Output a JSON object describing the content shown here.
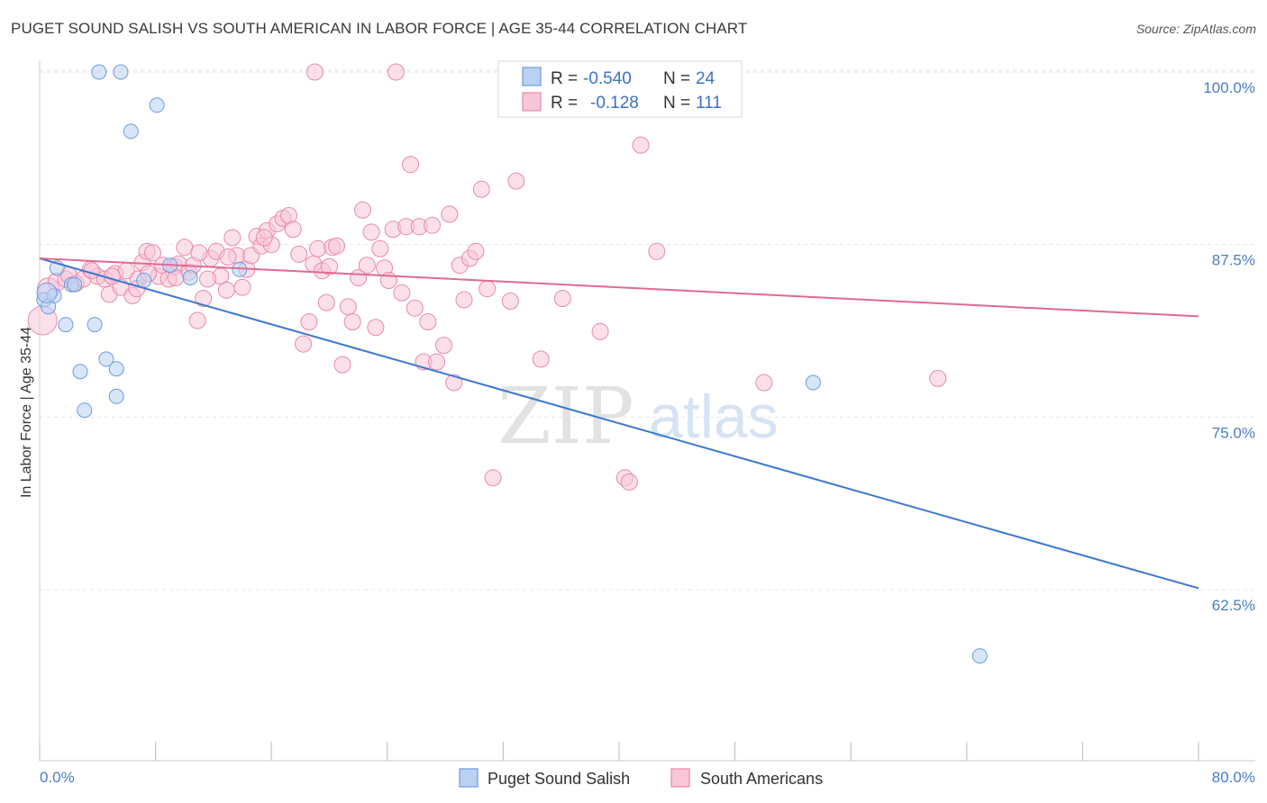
{
  "header": {
    "title": "PUGET SOUND SALISH VS SOUTH AMERICAN IN LABOR FORCE | AGE 35-44 CORRELATION CHART",
    "source": "Source: ZipAtlas.com"
  },
  "watermark": {
    "zip": "ZIP",
    "atlas": "atlas"
  },
  "colors": {
    "blue_fill": "#b9d1f2",
    "blue_stroke": "#6d9be0",
    "blue_line": "#3b78d0",
    "pink_fill": "#f8c6d8",
    "pink_stroke": "#e88aaa",
    "pink_line": "#e06a95",
    "grid": "#e4e4e4",
    "tick_text": "#4a7cc7"
  },
  "legend": {
    "rows": [
      {
        "r_label": "R = ",
        "r_value": "-0.540",
        "n_label": "N = ",
        "n_value": "24",
        "series": "blue"
      },
      {
        "r_label": "R = ",
        "r_value": "-0.128",
        "n_label": "N = ",
        "n_value": "111",
        "series": "pink"
      }
    ]
  },
  "bottom_legend": {
    "items": [
      "Puget Sound Salish",
      "South Americans"
    ]
  },
  "chart_data": {
    "type": "scatter",
    "title": "PUGET SOUND SALISH VS SOUTH AMERICAN IN LABOR FORCE | AGE 35-44 CORRELATION CHART",
    "xlabel": "",
    "ylabel": "In Labor Force | Age 35-44",
    "xlim": [
      0,
      80
    ],
    "ylim": [
      50,
      102
    ],
    "x_tick_labels": [
      "0.0%",
      "80.0%"
    ],
    "y_ticks": [
      62.5,
      75.0,
      87.5,
      100.0
    ],
    "y_tick_labels": [
      "62.5%",
      "75.0%",
      "87.5%",
      "100.0%"
    ],
    "grid": true,
    "legend_position": "top-center",
    "series": [
      {
        "name": "Puget Sound Salish",
        "color": "blue",
        "r": -0.54,
        "n": 24,
        "trend": [
          [
            0,
            86.5
          ],
          [
            80,
            62.6
          ]
        ],
        "points": [
          [
            0.3,
            83.5,
            8
          ],
          [
            0.6,
            83.0,
            8
          ],
          [
            1.2,
            85.8,
            8
          ],
          [
            1.0,
            83.8,
            8
          ],
          [
            1.8,
            81.7,
            8
          ],
          [
            2.2,
            84.6,
            8
          ],
          [
            2.4,
            84.6,
            8
          ],
          [
            2.8,
            78.3,
            8
          ],
          [
            3.1,
            75.5,
            8
          ],
          [
            3.8,
            81.7,
            8
          ],
          [
            4.6,
            79.2,
            8
          ],
          [
            5.3,
            78.5,
            8
          ],
          [
            5.3,
            76.5,
            8
          ],
          [
            4.1,
            100.0,
            8
          ],
          [
            5.6,
            100.0,
            8
          ],
          [
            6.3,
            95.7,
            8
          ],
          [
            8.1,
            97.6,
            8
          ],
          [
            7.2,
            84.9,
            8
          ],
          [
            9.0,
            86.0,
            8
          ],
          [
            10.4,
            85.1,
            8
          ],
          [
            13.8,
            85.7,
            8
          ],
          [
            53.4,
            77.5,
            8
          ],
          [
            64.9,
            57.7,
            8
          ],
          [
            0.5,
            84.0,
            11
          ]
        ]
      },
      {
        "name": "South Americans",
        "color": "pink",
        "r": -0.128,
        "n": 111,
        "trend": [
          [
            0,
            86.5
          ],
          [
            80,
            82.3
          ]
        ],
        "points": [
          [
            0.2,
            82.0,
            16
          ],
          [
            0.6,
            84.3,
            12
          ],
          [
            1.2,
            84.8,
            10
          ],
          [
            1.8,
            85.0,
            9
          ],
          [
            2.5,
            84.7,
            9
          ],
          [
            3.0,
            85.0,
            9
          ],
          [
            3.5,
            85.7,
            9
          ],
          [
            4.0,
            85.2,
            9
          ],
          [
            4.5,
            85.0,
            9
          ],
          [
            4.8,
            83.9,
            9
          ],
          [
            5.2,
            85.4,
            9
          ],
          [
            5.6,
            84.4,
            9
          ],
          [
            6.0,
            85.6,
            9
          ],
          [
            6.4,
            83.8,
            9
          ],
          [
            6.8,
            85.0,
            9
          ],
          [
            7.1,
            86.2,
            9
          ],
          [
            7.4,
            87.0,
            9
          ],
          [
            7.8,
            86.9,
            9
          ],
          [
            8.2,
            85.2,
            9
          ],
          [
            8.5,
            86.0,
            9
          ],
          [
            8.9,
            85.0,
            9
          ],
          [
            9.3,
            85.9,
            9
          ],
          [
            9.6,
            86.1,
            9
          ],
          [
            10.0,
            87.3,
            9
          ],
          [
            10.3,
            85.5,
            9
          ],
          [
            10.6,
            86.0,
            9
          ],
          [
            10.9,
            82.0,
            9
          ],
          [
            11.3,
            83.6,
            9
          ],
          [
            11.8,
            86.5,
            9
          ],
          [
            12.2,
            87.0,
            9
          ],
          [
            12.5,
            85.2,
            9
          ],
          [
            12.9,
            84.2,
            9
          ],
          [
            13.3,
            88.0,
            9
          ],
          [
            13.6,
            86.7,
            9
          ],
          [
            14.0,
            84.4,
            9
          ],
          [
            14.3,
            85.7,
            9
          ],
          [
            14.6,
            86.7,
            9
          ],
          [
            15.0,
            88.1,
            9
          ],
          [
            15.3,
            87.4,
            9
          ],
          [
            15.7,
            88.5,
            9
          ],
          [
            16.0,
            87.5,
            9
          ],
          [
            16.4,
            89.0,
            9
          ],
          [
            16.8,
            89.4,
            9
          ],
          [
            17.2,
            89.6,
            9
          ],
          [
            17.5,
            88.6,
            9
          ],
          [
            17.9,
            86.8,
            9
          ],
          [
            18.2,
            80.3,
            9
          ],
          [
            18.6,
            81.9,
            9
          ],
          [
            18.9,
            86.1,
            9
          ],
          [
            19.2,
            87.2,
            9
          ],
          [
            19.5,
            85.6,
            9
          ],
          [
            19.8,
            83.3,
            9
          ],
          [
            20.2,
            87.3,
            9
          ],
          [
            20.5,
            87.4,
            9
          ],
          [
            20.9,
            78.8,
            9
          ],
          [
            21.3,
            83.0,
            9
          ],
          [
            21.6,
            81.9,
            9
          ],
          [
            22.0,
            85.1,
            9
          ],
          [
            22.3,
            90.0,
            9
          ],
          [
            22.6,
            86.0,
            9
          ],
          [
            22.9,
            88.4,
            9
          ],
          [
            23.2,
            81.5,
            9
          ],
          [
            23.5,
            87.2,
            9
          ],
          [
            23.8,
            85.8,
            9
          ],
          [
            24.1,
            84.9,
            9
          ],
          [
            24.4,
            88.6,
            9
          ],
          [
            25.3,
            88.8,
            9
          ],
          [
            25.6,
            93.3,
            9
          ],
          [
            25.9,
            82.9,
            9
          ],
          [
            26.2,
            88.8,
            9
          ],
          [
            26.5,
            79.0,
            9
          ],
          [
            26.8,
            81.9,
            9
          ],
          [
            27.4,
            79.0,
            9
          ],
          [
            27.9,
            80.2,
            9
          ],
          [
            28.3,
            89.7,
            9
          ],
          [
            28.6,
            77.5,
            9
          ],
          [
            29.0,
            86.0,
            9
          ],
          [
            29.3,
            83.5,
            9
          ],
          [
            29.7,
            86.5,
            9
          ],
          [
            30.1,
            87.0,
            9
          ],
          [
            30.5,
            91.5,
            9
          ],
          [
            30.9,
            84.3,
            9
          ],
          [
            31.3,
            70.6,
            9
          ],
          [
            32.5,
            83.4,
            9
          ],
          [
            32.9,
            92.1,
            9
          ],
          [
            33.5,
            97.4,
            9
          ],
          [
            34.6,
            79.2,
            9
          ],
          [
            36.1,
            83.6,
            9
          ],
          [
            38.7,
            81.2,
            9
          ],
          [
            40.4,
            70.6,
            9
          ],
          [
            40.7,
            70.3,
            9
          ],
          [
            41.5,
            94.7,
            9
          ],
          [
            42.6,
            87.0,
            9
          ],
          [
            50.0,
            77.5,
            9
          ],
          [
            62.0,
            77.8,
            9
          ],
          [
            19.0,
            100.0,
            9
          ],
          [
            24.6,
            100.0,
            9
          ],
          [
            32.8,
            100.0,
            9
          ],
          [
            15.5,
            88.0,
            9
          ],
          [
            27.1,
            88.9,
            9
          ],
          [
            11.0,
            86.9,
            9
          ],
          [
            13.0,
            86.6,
            9
          ],
          [
            9.4,
            85.1,
            9
          ],
          [
            6.7,
            84.3,
            9
          ],
          [
            5.0,
            85.2,
            9
          ],
          [
            2.0,
            85.3,
            9
          ],
          [
            3.6,
            85.6,
            9
          ],
          [
            7.5,
            85.4,
            9
          ],
          [
            11.6,
            85.0,
            9
          ],
          [
            20.0,
            85.9,
            9
          ],
          [
            25.0,
            84.0,
            9
          ]
        ]
      }
    ]
  }
}
